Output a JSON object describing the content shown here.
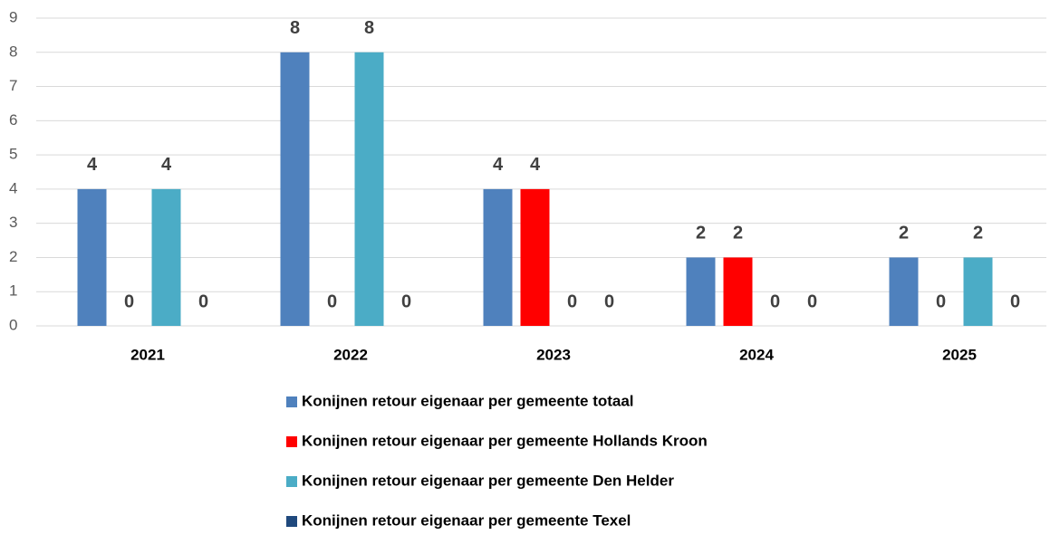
{
  "chart_data": {
    "type": "bar",
    "categories": [
      "2021",
      "2022",
      "2023",
      "2024",
      "2025"
    ],
    "series": [
      {
        "name": "Konijnen retour eigenaar per gemeente totaal",
        "color": "#4f81bd",
        "values": [
          4,
          8,
          4,
          2,
          2
        ]
      },
      {
        "name": "Konijnen retour eigenaar per gemeente Hollands Kroon",
        "color": "#ff0000",
        "values": [
          0,
          0,
          4,
          2,
          0
        ]
      },
      {
        "name": "Konijnen retour eigenaar per gemeente Den Helder",
        "color": "#4bacc6",
        "values": [
          4,
          8,
          0,
          0,
          2
        ]
      },
      {
        "name": "Konijnen retour eigenaar per gemeente Texel",
        "color": "#1f497d",
        "values": [
          0,
          0,
          0,
          0,
          0
        ]
      }
    ],
    "ylim": [
      0,
      9
    ],
    "yticks": [
      0,
      1,
      2,
      3,
      4,
      5,
      6,
      7,
      8,
      9
    ],
    "grid": true,
    "legend": "bottom"
  }
}
